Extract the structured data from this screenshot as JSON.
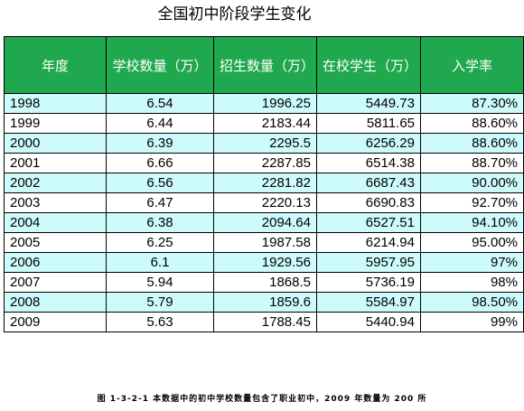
{
  "title": "全国初中阶段学生变化",
  "table": {
    "headers": [
      "年度",
      "学校数量（万）",
      "招生数量（万）",
      "在校学生（万）",
      "入学率"
    ],
    "rows": [
      [
        "1998",
        "6.54",
        "1996.25",
        "5449.73",
        "87.30%"
      ],
      [
        "1999",
        "6.44",
        "2183.44",
        "5811.65",
        "88.60%"
      ],
      [
        "2000",
        "6.39",
        "2295.5",
        "6256.29",
        "88.60%"
      ],
      [
        "2001",
        "6.66",
        "2287.85",
        "6514.38",
        "88.70%"
      ],
      [
        "2002",
        "6.56",
        "2281.82",
        "6687.43",
        "90.00%"
      ],
      [
        "2003",
        "6.47",
        "2220.13",
        "6690.83",
        "92.70%"
      ],
      [
        "2004",
        "6.38",
        "2094.64",
        "6527.51",
        "94.10%"
      ],
      [
        "2005",
        "6.25",
        "1987.58",
        "6214.94",
        "95.00%"
      ],
      [
        "2006",
        "6.1",
        "1929.56",
        "5957.95",
        "97%"
      ],
      [
        "2007",
        "5.94",
        "1868.5",
        "5736.19",
        "98%"
      ],
      [
        "2008",
        "5.79",
        "1859.6",
        "5584.97",
        "98.50%"
      ],
      [
        "2009",
        "5.63",
        "1788.45",
        "5440.94",
        "99%"
      ]
    ]
  },
  "caption": "图 1-3-2-1 本数据中的初中学校数量包含了职业初中，2009 年数量为 200 所",
  "colors": {
    "header_bg": "#1fa84d",
    "header_text": "#ffffff",
    "row_alt_bg": "#cdfbfb",
    "row_bg": "#ffffff"
  }
}
